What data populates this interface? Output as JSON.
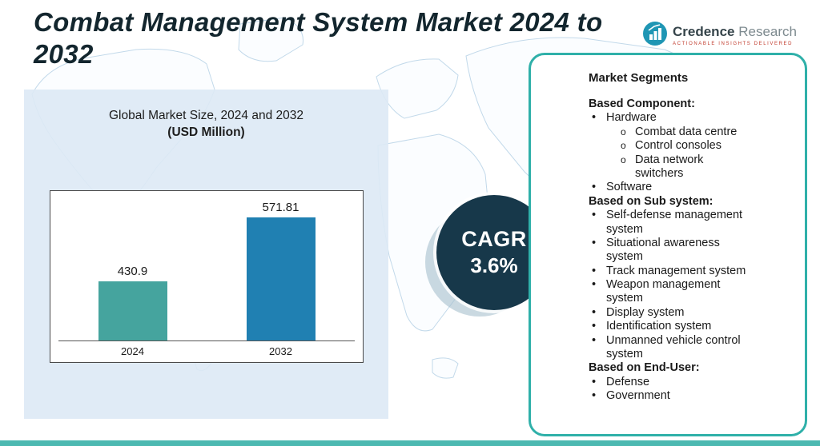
{
  "page": {
    "title": "Combat Management System Market 2024 to 2032"
  },
  "logo": {
    "name": "Credence",
    "name2": "Research",
    "tagline": "Actionable Insights Delivered"
  },
  "chart": {
    "heading": "Global Market Size, 2024 and 2032",
    "subheading": "(USD Million)"
  },
  "chart_data": {
    "type": "bar",
    "title": "Global Market Size, 2024 and 2032",
    "subtitle": "(USD Million)",
    "categories": [
      "2024",
      "2032"
    ],
    "values": [
      430.9,
      571.81
    ],
    "value_labels": [
      "430.9",
      "571.81"
    ],
    "xlabel": "",
    "ylabel": "USD Million",
    "ylim": [
      300,
      600
    ],
    "bar_colors": [
      "#45a49e",
      "#2080b2"
    ],
    "grid": false,
    "legend": false
  },
  "cagr": {
    "label": "CAGR",
    "value": "3.6%"
  },
  "segments": {
    "title": "Market Segments",
    "sections": [
      {
        "heading": "Based Component:",
        "items": [
          {
            "label": "Hardware",
            "sub": [
              "Combat data centre",
              "Control consoles",
              "Data network switchers"
            ]
          },
          {
            "label": "Software",
            "sub": []
          }
        ]
      },
      {
        "heading": "Based on Sub system:",
        "items": [
          {
            "label": "Self-defense management system",
            "sub": []
          },
          {
            "label": "Situational awareness system",
            "sub": []
          },
          {
            "label": "Track management system",
            "sub": []
          },
          {
            "label": "Weapon management system",
            "sub": []
          },
          {
            "label": "Display system",
            "sub": []
          },
          {
            "label": "Identification system",
            "sub": []
          },
          {
            "label": "Unmanned vehicle control system",
            "sub": []
          }
        ]
      },
      {
        "heading": "Based on End-User:",
        "items": [
          {
            "label": "Defense",
            "sub": []
          },
          {
            "label": "Government",
            "sub": []
          }
        ]
      }
    ]
  },
  "colors": {
    "accent_teal_border": "#2fb0a9",
    "cagr_circle": "#17384a",
    "panel_blue": "#dde9f4",
    "bottom_bar": "#4cb9b1",
    "bar_2024": "#45a49e",
    "bar_2032": "#2080b2"
  }
}
